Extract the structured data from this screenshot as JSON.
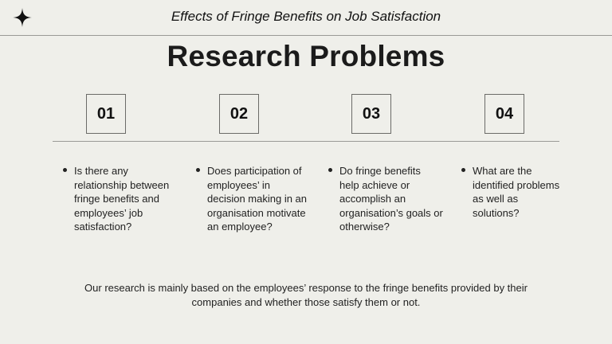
{
  "header": {
    "title": "Effects of Fringe Benefits on Job Satisfaction"
  },
  "title": "Research Problems",
  "problems": [
    {
      "number": "01",
      "text": "Is there any relationship between fringe benefits and employees’ job satisfaction?"
    },
    {
      "number": "02",
      "text": "Does participation of employees’ in decision making in an organisation motivate an employee?"
    },
    {
      "number": "03",
      "text": "Do fringe benefits help achieve or accomplish an organisation’s goals or otherwise?"
    },
    {
      "number": "04",
      "text": "What are the identified problems as well as solutions?"
    }
  ],
  "footer": "Our research is mainly based on the employees’ response to the fringe benefits provided by their companies and whether those satisfy them or not.",
  "colors": {
    "background": "#efefea",
    "text": "#1b1b1b",
    "rule": "#9a9a96"
  },
  "icons": {
    "corner": "four-point-star-icon"
  }
}
